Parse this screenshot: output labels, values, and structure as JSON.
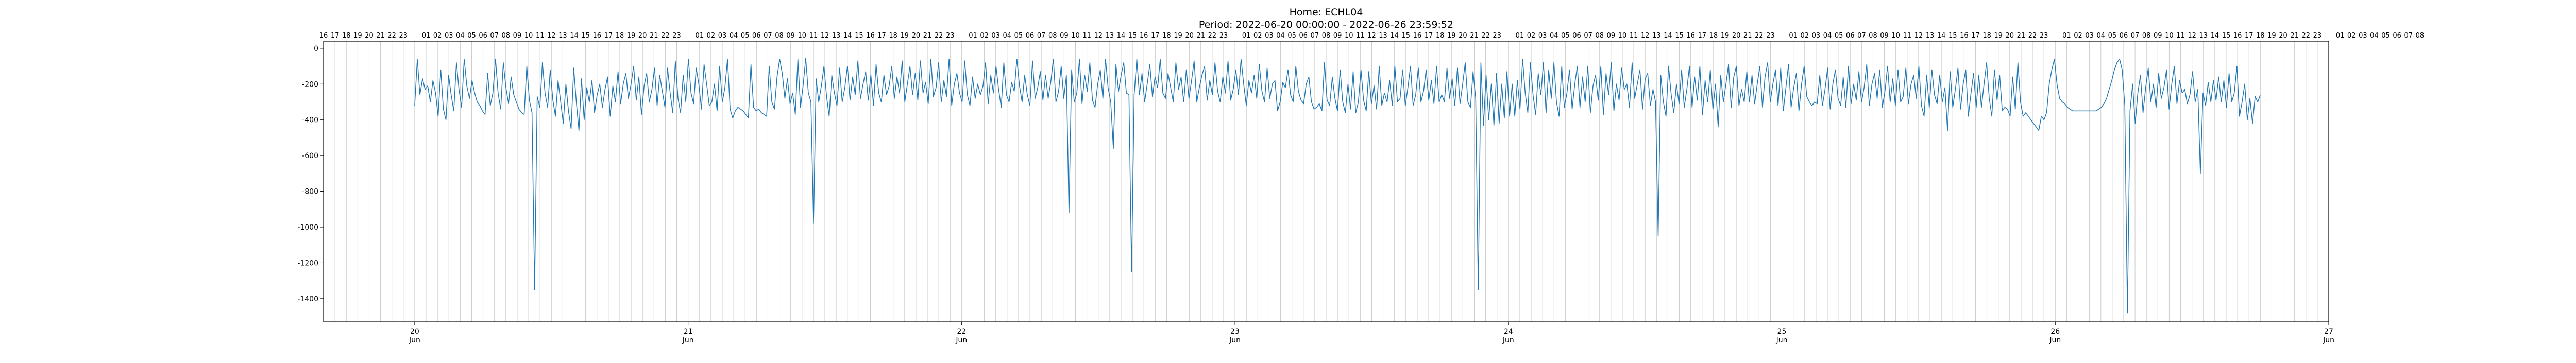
{
  "chart_data": {
    "type": "line",
    "title": "Home: ECHL04",
    "subtitle": "Period: 2022-06-20 00:00:00 - 2022-06-26 23:59:52",
    "xlabel": "",
    "ylabel": "",
    "ylim": [
      -1530,
      40
    ],
    "yticks": [
      0,
      -200,
      -400,
      -600,
      -800,
      -1000,
      -1200,
      -1400
    ],
    "x_range_hours": [
      -8,
      168
    ],
    "day_ticks": [
      {
        "day": "20",
        "month": "Jun"
      },
      {
        "day": "21",
        "month": "Jun"
      },
      {
        "day": "22",
        "month": "Jun"
      },
      {
        "day": "23",
        "month": "Jun"
      },
      {
        "day": "24",
        "month": "Jun"
      },
      {
        "day": "25",
        "month": "Jun"
      },
      {
        "day": "26",
        "month": "Jun"
      },
      {
        "day": "27",
        "month": "Jun"
      }
    ],
    "hour_labels": [
      "16",
      "17",
      "18",
      "19",
      "20",
      "21",
      "22",
      "23",
      "",
      "01",
      "02",
      "03",
      "04",
      "05",
      "06",
      "07",
      "08",
      "09",
      "10",
      "11",
      "12",
      "13",
      "14",
      "15",
      "16",
      "17",
      "18",
      "19",
      "20",
      "21",
      "22",
      "23",
      "",
      "01",
      "02",
      "03",
      "04",
      "05",
      "06",
      "07",
      "08",
      "09",
      "10",
      "11",
      "12",
      "13",
      "14",
      "15",
      "16",
      "17",
      "18",
      "19",
      "20",
      "21",
      "22",
      "23",
      "",
      "01",
      "02",
      "03",
      "04",
      "05",
      "06",
      "07",
      "08",
      "09",
      "10",
      "11",
      "12",
      "13",
      "14",
      "15",
      "16",
      "17",
      "18",
      "19",
      "20",
      "21",
      "22",
      "23",
      "",
      "01",
      "02",
      "03",
      "04",
      "05",
      "06",
      "07",
      "08",
      "09",
      "10",
      "11",
      "12",
      "13",
      "14",
      "15",
      "16",
      "17",
      "18",
      "19",
      "20",
      "21",
      "22",
      "23",
      "",
      "01",
      "02",
      "03",
      "04",
      "05",
      "06",
      "07",
      "08",
      "09",
      "10",
      "11",
      "12",
      "13",
      "14",
      "15",
      "16",
      "17",
      "18",
      "19",
      "20",
      "21",
      "22",
      "23",
      "",
      "01",
      "02",
      "03",
      "04",
      "05",
      "06",
      "07",
      "08",
      "09",
      "10",
      "11",
      "12",
      "13",
      "14",
      "15",
      "16",
      "17",
      "18",
      "19",
      "20",
      "21",
      "22",
      "23",
      "",
      "01",
      "02",
      "03",
      "04",
      "05",
      "06",
      "07",
      "08",
      "09",
      "10",
      "11",
      "12",
      "13",
      "14",
      "15",
      "16",
      "17",
      "18",
      "19",
      "20",
      "21",
      "22",
      "23",
      "",
      "01",
      "02",
      "03",
      "04",
      "05",
      "06",
      "07",
      "08"
    ],
    "grid": "vertical hourly",
    "series": [
      {
        "color": "#1f77b4",
        "values": [
          -320,
          -60,
          -260,
          -170,
          -230,
          -210,
          -300,
          -180,
          -250,
          -380,
          -120,
          -340,
          -400,
          -150,
          -260,
          -350,
          -80,
          -230,
          -330,
          -60,
          -210,
          -280,
          -180,
          -250,
          -300,
          -320,
          -350,
          -370,
          -140,
          -320,
          -250,
          -60,
          -250,
          -340,
          -80,
          -220,
          -310,
          -160,
          -260,
          -300,
          -340,
          -360,
          -370,
          -100,
          -290,
          -360,
          -1350,
          -270,
          -330,
          -80,
          -250,
          -330,
          -120,
          -290,
          -380,
          -180,
          -300,
          -420,
          -200,
          -350,
          -450,
          -110,
          -300,
          -460,
          -170,
          -400,
          -220,
          -300,
          -180,
          -360,
          -260,
          -200,
          -330,
          -230,
          -160,
          -380,
          -210,
          -300,
          -130,
          -310,
          -200,
          -140,
          -280,
          -200,
          -100,
          -290,
          -160,
          -370,
          -210,
          -140,
          -300,
          -230,
          -110,
          -320,
          -150,
          -240,
          -330,
          -110,
          -250,
          -360,
          -70,
          -280,
          -360,
          -150,
          -300,
          -60,
          -250,
          -310,
          -110,
          -200,
          -340,
          -90,
          -200,
          -320,
          -300,
          -200,
          -350,
          -100,
          -300,
          -220,
          -60,
          -340,
          -390,
          -350,
          -330,
          -340,
          -350,
          -370,
          -390,
          -90,
          -330,
          -350,
          -340,
          -360,
          -370,
          -380,
          -100,
          -300,
          -340,
          -160,
          -60,
          -140,
          -280,
          -170,
          -310,
          -250,
          -370,
          -60,
          -330,
          -210,
          -55,
          -250,
          -300,
          -980,
          -170,
          -300,
          -210,
          -100,
          -270,
          -380,
          -150,
          -250,
          -320,
          -110,
          -300,
          -220,
          -100,
          -290,
          -160,
          -260,
          -70,
          -280,
          -200,
          -130,
          -290,
          -150,
          -320,
          -90,
          -250,
          -300,
          -150,
          -260,
          -210,
          -100,
          -280,
          -160,
          -250,
          -70,
          -300,
          -200,
          -100,
          -260,
          -140,
          -290,
          -70,
          -250,
          -190,
          -310,
          -60,
          -270,
          -220,
          -80,
          -300,
          -180,
          -270,
          -60,
          -320,
          -200,
          -140,
          -250,
          -300,
          -70,
          -260,
          -320,
          -160,
          -280,
          -200,
          -260,
          -210,
          -80,
          -310,
          -150,
          -250,
          -100,
          -230,
          -330,
          -80,
          -260,
          -300,
          -190,
          -240,
          -60,
          -210,
          -300,
          -150,
          -260,
          -320,
          -70,
          -280,
          -220,
          -130,
          -290,
          -150,
          -280,
          -190,
          -60,
          -300,
          -240,
          -100,
          -280,
          -150,
          -920,
          -120,
          -300,
          -250,
          -60,
          -310,
          -150,
          -240,
          -80,
          -290,
          -330,
          -200,
          -120,
          -280,
          -60,
          -220,
          -300,
          -560,
          -90,
          -240,
          -150,
          -80,
          -250,
          -260,
          -1250,
          -260,
          -60,
          -260,
          -140,
          -300,
          -200,
          -90,
          -270,
          -160,
          -220,
          -60,
          -250,
          -280,
          -140,
          -220,
          -300,
          -80,
          -230,
          -160,
          -300,
          -120,
          -280,
          -180,
          -70,
          -300,
          -220,
          -150,
          -100,
          -290,
          -180,
          -260,
          -80,
          -240,
          -300,
          -160,
          -250,
          -70,
          -290,
          -230,
          -120,
          -260,
          -60,
          -200,
          -320,
          -180,
          -250,
          -150,
          -280,
          -90,
          -240,
          -300,
          -110,
          -280,
          -200,
          -180,
          -350,
          -300,
          -190,
          -220,
          -120,
          -260,
          -300,
          -100,
          -240,
          -290,
          -310,
          -200,
          -160,
          -300,
          -340,
          -330,
          -310,
          -350,
          -80,
          -290,
          -320,
          -160,
          -280,
          -350,
          -120,
          -300,
          -360,
          -200,
          -340,
          -130,
          -360,
          -300,
          -120,
          -290,
          -350,
          -130,
          -310,
          -210,
          -340,
          -100,
          -320,
          -250,
          -300,
          -180,
          -320,
          -100,
          -300,
          -280,
          -120,
          -320,
          -220,
          -100,
          -320,
          -260,
          -110,
          -300,
          -240,
          -120,
          -290,
          -180,
          -310,
          -100,
          -300,
          -260,
          -300,
          -110,
          -280,
          -170,
          -320,
          -110,
          -310,
          -200,
          -80,
          -300,
          -330,
          -130,
          -280,
          -1350,
          -80,
          -430,
          -150,
          -400,
          -200,
          -430,
          -140,
          -420,
          -200,
          -390,
          -130,
          -380,
          -200,
          -380,
          -180,
          -340,
          -60,
          -250,
          -360,
          -80,
          -260,
          -370,
          -140,
          -260,
          -80,
          -360,
          -120,
          -280,
          -80,
          -300,
          -380,
          -100,
          -330,
          -250,
          -120,
          -340,
          -200,
          -100,
          -330,
          -160,
          -300,
          -100,
          -360,
          -210,
          -150,
          -290,
          -100,
          -370,
          -140,
          -260,
          -80,
          -350,
          -200,
          -290,
          -110,
          -230,
          -200,
          -330,
          -80,
          -280,
          -200,
          -120,
          -340,
          -170,
          -140,
          -320,
          -230,
          -300,
          -1050,
          -150,
          -300,
          -380,
          -100,
          -260,
          -360,
          -200,
          -310,
          -120,
          -330,
          -230,
          -100,
          -330,
          -160,
          -290,
          -100,
          -370,
          -180,
          -300,
          -120,
          -340,
          -200,
          -440,
          -150,
          -300,
          -200,
          -90,
          -330,
          -160,
          -100,
          -320,
          -230,
          -300,
          -130,
          -300,
          -150,
          -310,
          -200,
          -100,
          -330,
          -160,
          -80,
          -300,
          -200,
          -120,
          -320,
          -110,
          -350,
          -220,
          -90,
          -330,
          -220,
          -140,
          -350,
          -200,
          -100,
          -270,
          -300,
          -320,
          -300,
          -310,
          -150,
          -320,
          -230,
          -110,
          -340,
          -200,
          -120,
          -280,
          -320,
          -160,
          -330,
          -100,
          -310,
          -200,
          -290,
          -130,
          -300,
          -220,
          -90,
          -320,
          -200,
          -140,
          -280,
          -120,
          -330,
          -240,
          -100,
          -300,
          -170,
          -320,
          -120,
          -300,
          -270,
          -110,
          -310,
          -200,
          -150,
          -280,
          -100,
          -320,
          -380,
          -150,
          -330,
          -120,
          -260,
          -310,
          -150,
          -300,
          -220,
          -460,
          -130,
          -330,
          -230,
          -110,
          -340,
          -200,
          -120,
          -380,
          -250,
          -140,
          -330,
          -150,
          -330,
          -200,
          -80,
          -280,
          -380,
          -120,
          -290,
          -150,
          -350,
          -330,
          -340,
          -380,
          -160,
          -340,
          -80,
          -300,
          -380,
          -360,
          -380,
          -400,
          -420,
          -440,
          -460,
          -380,
          -400,
          -360,
          -200,
          -120,
          -60,
          -200,
          -280,
          -300,
          -310,
          -330,
          -340,
          -350,
          -350,
          -350,
          -350,
          -350,
          -350,
          -350,
          -350,
          -350,
          -350,
          -340,
          -330,
          -310,
          -280,
          -230,
          -180,
          -120,
          -80,
          -60,
          -120,
          -320,
          -1480,
          -350,
          -200,
          -420,
          -250,
          -150,
          -360,
          -220,
          -110,
          -300,
          -200,
          -330,
          -140,
          -280,
          -220,
          -120,
          -340,
          -200,
          -100,
          -310,
          -180,
          -250,
          -230,
          -310,
          -260,
          -130,
          -300,
          -230,
          -700,
          -250,
          -320,
          -190,
          -300,
          -180,
          -290,
          -160,
          -300,
          -180,
          -330,
          -140,
          -300,
          -250,
          -100,
          -380,
          -300,
          -200,
          -400,
          -280,
          -420,
          -270,
          -300,
          -260
        ]
      }
    ]
  }
}
